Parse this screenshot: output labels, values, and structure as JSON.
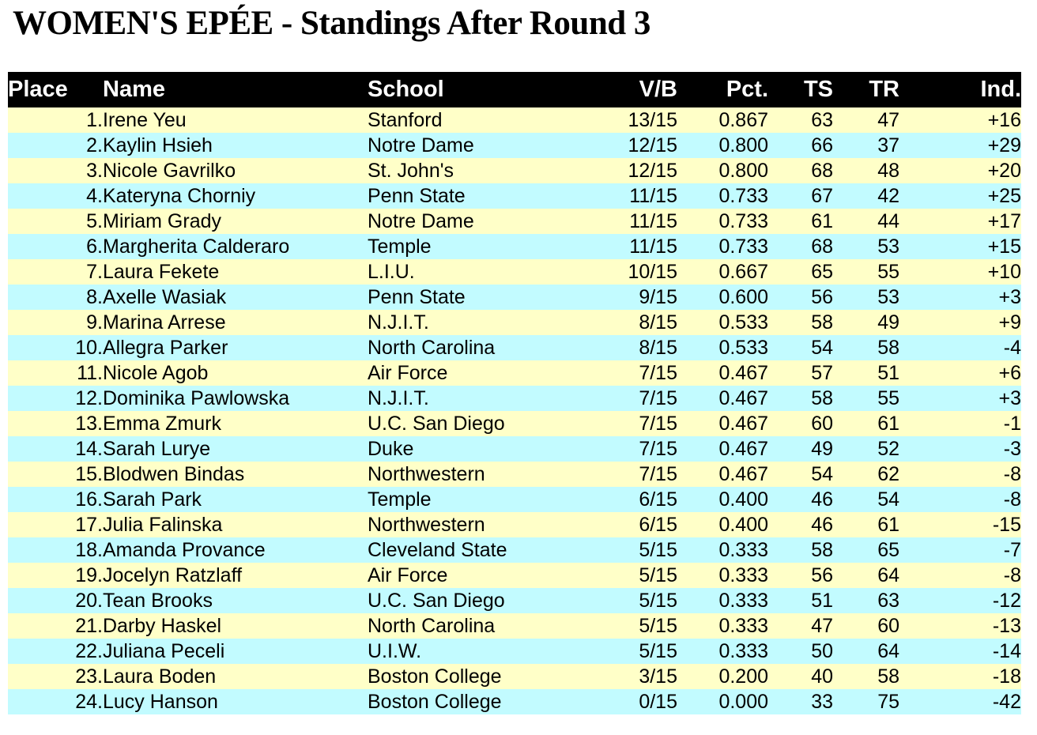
{
  "title": "WOMEN'S EPÉE - Standings After Round 3",
  "table": {
    "header_bg": "#000000",
    "header_fg": "#ffffff",
    "row_colors": [
      "#FFFFC8",
      "#C2FBFF"
    ],
    "columns": [
      {
        "key": "place",
        "label": "Place"
      },
      {
        "key": "name",
        "label": "Name"
      },
      {
        "key": "school",
        "label": "School"
      },
      {
        "key": "vb",
        "label": "V/B"
      },
      {
        "key": "pct",
        "label": "Pct."
      },
      {
        "key": "ts",
        "label": "TS"
      },
      {
        "key": "tr",
        "label": "TR"
      },
      {
        "key": "ind",
        "label": "Ind."
      }
    ],
    "rows": [
      {
        "place": "1.",
        "name": "Irene Yeu",
        "school": "Stanford",
        "vb": "13/15",
        "pct": "0.867",
        "ts": "63",
        "tr": "47",
        "ind": "+16"
      },
      {
        "place": "2.",
        "name": "Kaylin Hsieh",
        "school": "Notre Dame",
        "vb": "12/15",
        "pct": "0.800",
        "ts": "66",
        "tr": "37",
        "ind": "+29"
      },
      {
        "place": "3.",
        "name": "Nicole Gavrilko",
        "school": "St. John's",
        "vb": "12/15",
        "pct": "0.800",
        "ts": "68",
        "tr": "48",
        "ind": "+20"
      },
      {
        "place": "4.",
        "name": "Kateryna Chorniy",
        "school": "Penn State",
        "vb": "11/15",
        "pct": "0.733",
        "ts": "67",
        "tr": "42",
        "ind": "+25"
      },
      {
        "place": "5.",
        "name": "Miriam Grady",
        "school": "Notre Dame",
        "vb": "11/15",
        "pct": "0.733",
        "ts": "61",
        "tr": "44",
        "ind": "+17"
      },
      {
        "place": "6.",
        "name": "Margherita Calderaro",
        "school": "Temple",
        "vb": "11/15",
        "pct": "0.733",
        "ts": "68",
        "tr": "53",
        "ind": "+15"
      },
      {
        "place": "7.",
        "name": "Laura Fekete",
        "school": "L.I.U.",
        "vb": "10/15",
        "pct": "0.667",
        "ts": "65",
        "tr": "55",
        "ind": "+10"
      },
      {
        "place": "8.",
        "name": "Axelle Wasiak",
        "school": "Penn State",
        "vb": "9/15",
        "pct": "0.600",
        "ts": "56",
        "tr": "53",
        "ind": "+3"
      },
      {
        "place": "9.",
        "name": "Marina Arrese",
        "school": "N.J.I.T.",
        "vb": "8/15",
        "pct": "0.533",
        "ts": "58",
        "tr": "49",
        "ind": "+9"
      },
      {
        "place": "10.",
        "name": "Allegra Parker",
        "school": "North Carolina",
        "vb": "8/15",
        "pct": "0.533",
        "ts": "54",
        "tr": "58",
        "ind": "-4"
      },
      {
        "place": "11.",
        "name": "Nicole Agob",
        "school": "Air Force",
        "vb": "7/15",
        "pct": "0.467",
        "ts": "57",
        "tr": "51",
        "ind": "+6"
      },
      {
        "place": "12.",
        "name": "Dominika Pawlowska",
        "school": "N.J.I.T.",
        "vb": "7/15",
        "pct": "0.467",
        "ts": "58",
        "tr": "55",
        "ind": "+3"
      },
      {
        "place": "13.",
        "name": "Emma Zmurk",
        "school": "U.C. San Diego",
        "vb": "7/15",
        "pct": "0.467",
        "ts": "60",
        "tr": "61",
        "ind": "-1"
      },
      {
        "place": "14.",
        "name": "Sarah Lurye",
        "school": "Duke",
        "vb": "7/15",
        "pct": "0.467",
        "ts": "49",
        "tr": "52",
        "ind": "-3"
      },
      {
        "place": "15.",
        "name": "Blodwen Bindas",
        "school": "Northwestern",
        "vb": "7/15",
        "pct": "0.467",
        "ts": "54",
        "tr": "62",
        "ind": "-8"
      },
      {
        "place": "16.",
        "name": "Sarah Park",
        "school": "Temple",
        "vb": "6/15",
        "pct": "0.400",
        "ts": "46",
        "tr": "54",
        "ind": "-8"
      },
      {
        "place": "17.",
        "name": "Julia Falinska",
        "school": "Northwestern",
        "vb": "6/15",
        "pct": "0.400",
        "ts": "46",
        "tr": "61",
        "ind": "-15"
      },
      {
        "place": "18.",
        "name": "Amanda Provance",
        "school": "Cleveland State",
        "vb": "5/15",
        "pct": "0.333",
        "ts": "58",
        "tr": "65",
        "ind": "-7"
      },
      {
        "place": "19.",
        "name": "Jocelyn Ratzlaff",
        "school": "Air Force",
        "vb": "5/15",
        "pct": "0.333",
        "ts": "56",
        "tr": "64",
        "ind": "-8"
      },
      {
        "place": "20.",
        "name": "Tean Brooks",
        "school": "U.C. San Diego",
        "vb": "5/15",
        "pct": "0.333",
        "ts": "51",
        "tr": "63",
        "ind": "-12"
      },
      {
        "place": "21.",
        "name": "Darby Haskel",
        "school": "North Carolina",
        "vb": "5/15",
        "pct": "0.333",
        "ts": "47",
        "tr": "60",
        "ind": "-13"
      },
      {
        "place": "22.",
        "name": "Juliana Peceli",
        "school": "U.I.W.",
        "vb": "5/15",
        "pct": "0.333",
        "ts": "50",
        "tr": "64",
        "ind": "-14"
      },
      {
        "place": "23.",
        "name": "Laura Boden",
        "school": "Boston College",
        "vb": "3/15",
        "pct": "0.200",
        "ts": "40",
        "tr": "58",
        "ind": "-18"
      },
      {
        "place": "24.",
        "name": "Lucy Hanson",
        "school": "Boston College",
        "vb": "0/15",
        "pct": "0.000",
        "ts": "33",
        "tr": "75",
        "ind": "-42"
      }
    ]
  }
}
